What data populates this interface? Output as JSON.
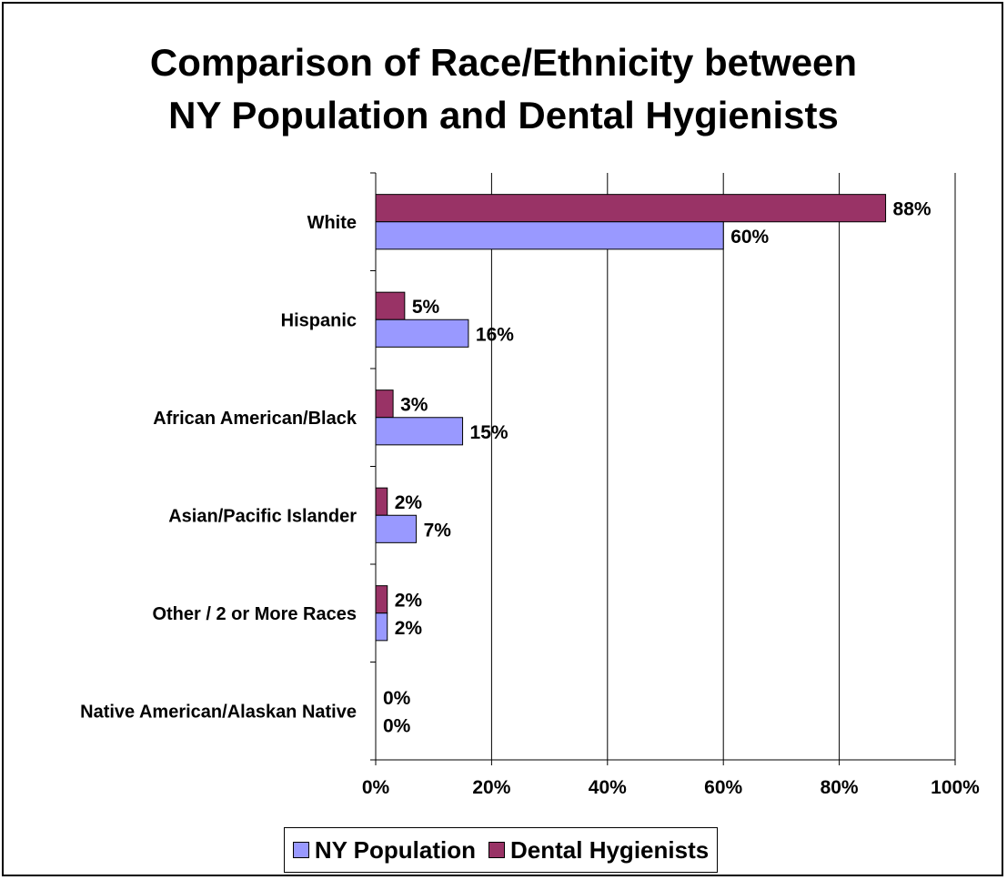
{
  "chart_data": {
    "type": "bar",
    "orientation": "horizontal",
    "title": [
      "Comparison of Race/Ethnicity between",
      "NY Population and Dental Hygienists"
    ],
    "categories": [
      "White",
      "Hispanic",
      "African American/Black",
      "Asian/Pacific Islander",
      "Other / 2 or More Races",
      "Native American/Alaskan Native"
    ],
    "series": [
      {
        "name": "NY Population",
        "color": "#9999ff",
        "values": [
          60,
          16,
          15,
          7,
          2,
          0
        ],
        "labels": [
          "60%",
          "16%",
          "15%",
          "7%",
          "2%",
          "0%"
        ]
      },
      {
        "name": "Dental Hygienists",
        "color": "#993366",
        "values": [
          88,
          5,
          3,
          2,
          2,
          0
        ],
        "labels": [
          "88%",
          "5%",
          "3%",
          "2%",
          "2%",
          "0%"
        ]
      }
    ],
    "xlim": [
      0,
      100
    ],
    "xticks": [
      "0%",
      "20%",
      "40%",
      "60%",
      "80%",
      "100%"
    ],
    "grid": true,
    "legend": "bottom"
  }
}
